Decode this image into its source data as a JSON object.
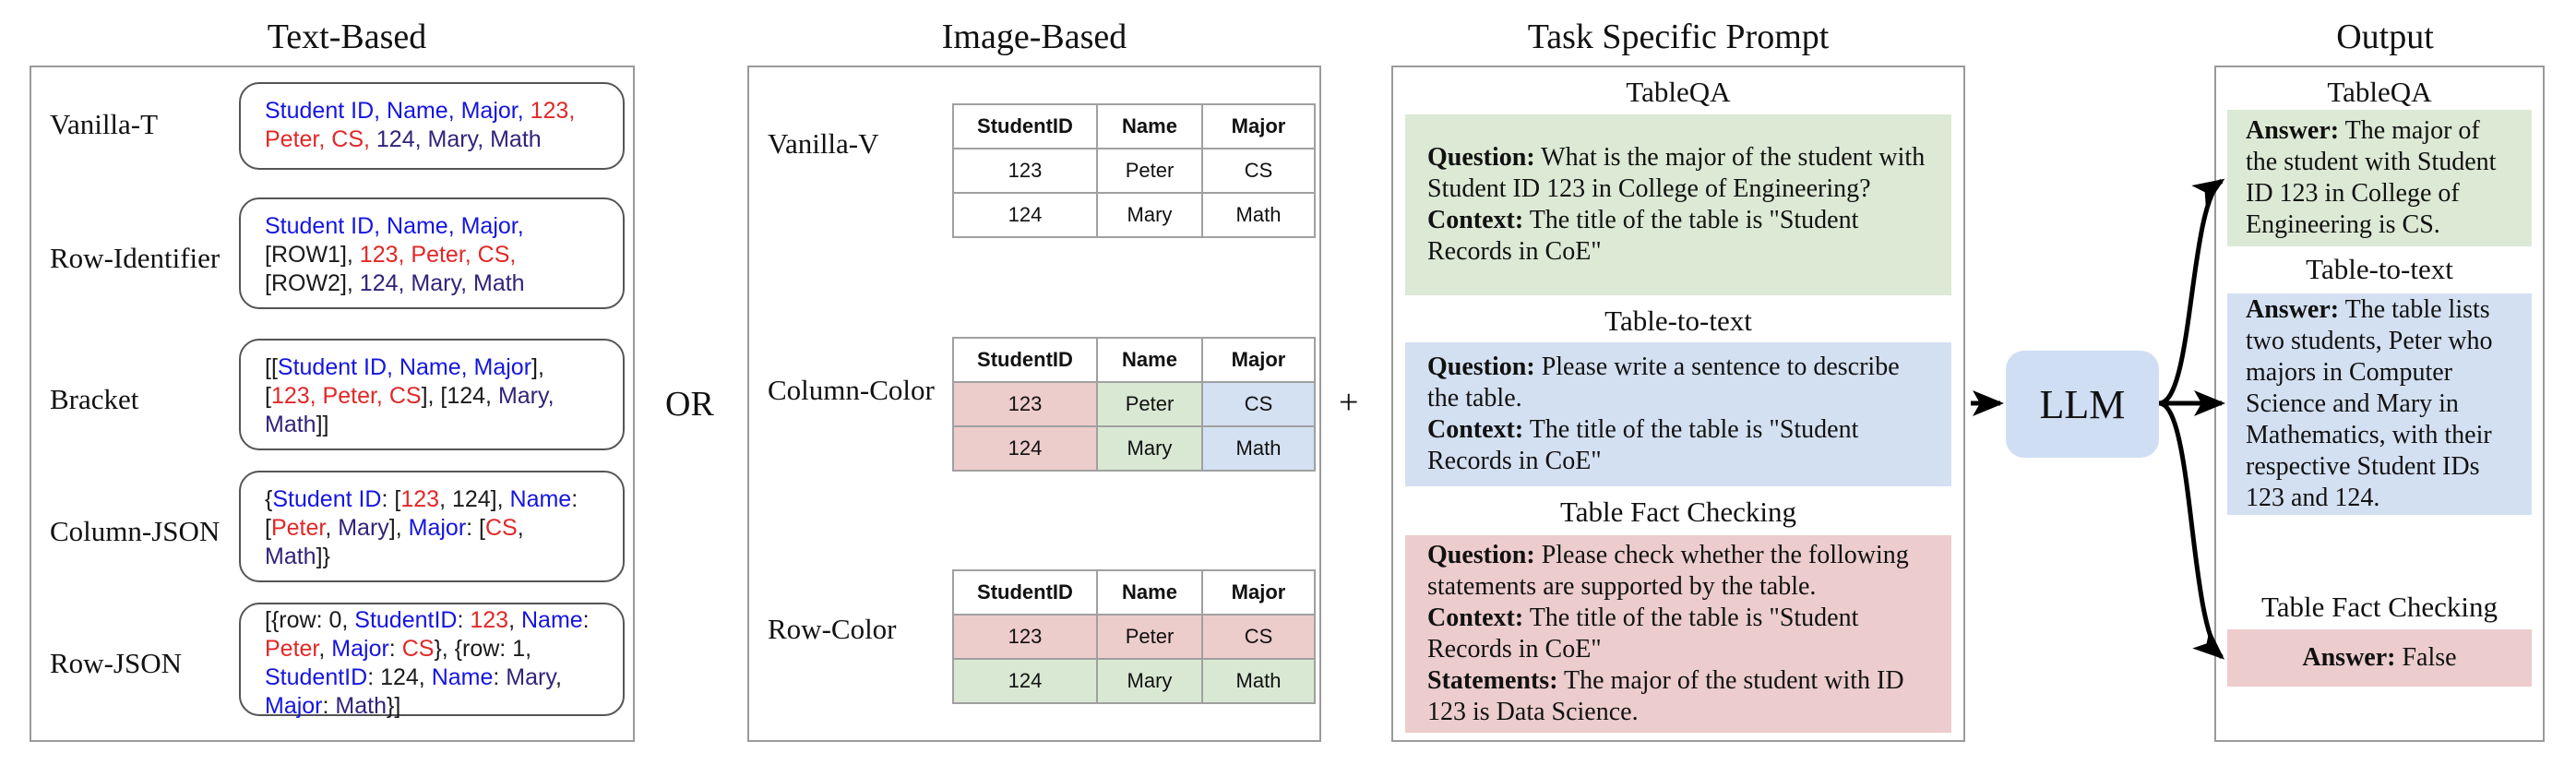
{
  "titles": {
    "text_based": "Text-Based",
    "image_based": "Image-Based",
    "prompt": "Task Specific Prompt",
    "output": "Output"
  },
  "connectors": {
    "or": "OR",
    "plus": "+"
  },
  "text_based": {
    "items": [
      {
        "label": "Vanilla-T",
        "lines": [
          [
            [
              "blu",
              "Student ID, Name, Major, "
            ],
            [
              "red",
              "123,"
            ]
          ],
          [
            [
              "red",
              "Peter, CS, "
            ],
            [
              "pur",
              "124, Mary, Math"
            ]
          ]
        ]
      },
      {
        "label": "Row-Identifier",
        "lines": [
          [
            [
              "blu",
              "Student ID, Name, Major,"
            ]
          ],
          [
            [
              "blk",
              "[ROW1], "
            ],
            [
              "red",
              "123, Peter, CS,"
            ]
          ],
          [
            [
              "blk",
              "[ROW2], "
            ],
            [
              "pur",
              "124, Mary, Math"
            ]
          ]
        ]
      },
      {
        "label": "Bracket",
        "lines": [
          [
            [
              "blk",
              "[["
            ],
            [
              "blu",
              "Student ID, Name, Major"
            ],
            [
              "blk",
              "],"
            ]
          ],
          [
            [
              "blk",
              "["
            ],
            [
              "red",
              "123, Peter, CS"
            ],
            [
              "blk",
              "], [124, "
            ],
            [
              "pur",
              "Mary,"
            ]
          ],
          [
            [
              "pur",
              "Math"
            ],
            [
              "blk",
              "]]"
            ]
          ]
        ]
      },
      {
        "label": "Column-JSON",
        "lines": [
          [
            [
              "blk",
              "{"
            ],
            [
              "blu",
              "Student ID"
            ],
            [
              "blk",
              ": ["
            ],
            [
              "red",
              "123"
            ],
            [
              "blk",
              ", 124], "
            ],
            [
              "blu",
              "Name"
            ],
            [
              "blk",
              ":"
            ]
          ],
          [
            [
              "blk",
              "["
            ],
            [
              "red",
              "Peter"
            ],
            [
              "blk",
              ", "
            ],
            [
              "pur",
              "Mary"
            ],
            [
              "blk",
              "], "
            ],
            [
              "blu",
              "Major"
            ],
            [
              "blk",
              ": ["
            ],
            [
              "red",
              "CS"
            ],
            [
              "blk",
              ","
            ]
          ],
          [
            [
              "pur",
              "Math"
            ],
            [
              "blk",
              "]}"
            ]
          ]
        ]
      },
      {
        "label": "Row-JSON",
        "lines": [
          [
            [
              "blk",
              "[{row: 0, "
            ],
            [
              "blu",
              "StudentID"
            ],
            [
              "blk",
              ": "
            ],
            [
              "red",
              "123"
            ],
            [
              "blk",
              ", "
            ],
            [
              "blu",
              "Name"
            ],
            [
              "blk",
              ":"
            ]
          ],
          [
            [
              "red",
              "Peter"
            ],
            [
              "blk",
              ", "
            ],
            [
              "blu",
              "Major"
            ],
            [
              "blk",
              ": "
            ],
            [
              "red",
              "CS"
            ],
            [
              "blk",
              "}, {row: 1,"
            ]
          ],
          [
            [
              "blu",
              "StudentID"
            ],
            [
              "blk",
              ": 124, "
            ],
            [
              "blu",
              "Name"
            ],
            [
              "blk",
              ": "
            ],
            [
              "pur",
              "Mary"
            ],
            [
              "blk",
              ","
            ]
          ],
          [
            [
              "blu",
              "Major"
            ],
            [
              "blk",
              ": "
            ],
            [
              "pur",
              "Math"
            ],
            [
              "blk",
              "}]"
            ]
          ]
        ]
      }
    ]
  },
  "image_based": {
    "table": {
      "headers": [
        "StudentID",
        "Name",
        "Major"
      ],
      "rows": [
        [
          "123",
          "Peter",
          "CS"
        ],
        [
          "124",
          "Mary",
          "Math"
        ]
      ]
    },
    "variants": [
      {
        "label": "Vanilla-V",
        "colors": [
          [
            "c-wht",
            "c-wht",
            "c-wht"
          ],
          [
            "c-wht",
            "c-wht",
            "c-wht"
          ]
        ]
      },
      {
        "label": "Column-Color",
        "colors": [
          [
            "c-red",
            "c-grn",
            "c-blu"
          ],
          [
            "c-red",
            "c-grn",
            "c-blu"
          ]
        ]
      },
      {
        "label": "Row-Color",
        "colors": [
          [
            "c-red",
            "c-red",
            "c-red"
          ],
          [
            "c-grn",
            "c-grn",
            "c-grn"
          ]
        ]
      }
    ]
  },
  "prompt": {
    "tableqa": {
      "heading": "TableQA",
      "question_label": "Question:",
      "question": " What is the major of the student with Student ID 123 in College of Engineering?",
      "context_label": "Context:",
      "context": " The title of the table is \"Student Records in CoE\""
    },
    "table_to_text": {
      "heading": "Table-to-text",
      "question_label": "Question:",
      "question": " Please write a sentence to describe the table.",
      "context_label": "Context:",
      "context": " The title of the table is \"Student Records in CoE\""
    },
    "fact_checking": {
      "heading": "Table Fact Checking",
      "question_label": "Question:",
      "question": " Please check whether the following statements are supported by the table.",
      "context_label": "Context:",
      "context": " The title of the table is \"Student Records in CoE\"",
      "statements_label": "Statements:",
      "statements": " The major of the student with ID 123 is Data Science."
    }
  },
  "llm": {
    "label": "LLM"
  },
  "output": {
    "tableqa": {
      "heading": "TableQA",
      "answer_label": "Answer:",
      "answer": " The major of the student with Student ID 123 in College of Engineering is CS."
    },
    "table_to_text": {
      "heading": "Table-to-text",
      "answer_label": "Answer:",
      "answer": " The table lists two students, Peter who majors in Computer Science and Mary in Mathematics, with their respective Student IDs 123 and 124."
    },
    "fact_checking": {
      "heading": "Table Fact Checking",
      "answer_label": "Answer:",
      "answer": " False"
    }
  },
  "colors": {
    "key_blue": "#1515e0",
    "value_red": "#e02828",
    "value_purple": "#33227a",
    "prompt_green": "#dce9d4",
    "prompt_blue": "#d3e0f1",
    "prompt_pink": "#eccccc",
    "llm_fill": "#cfdef3"
  }
}
